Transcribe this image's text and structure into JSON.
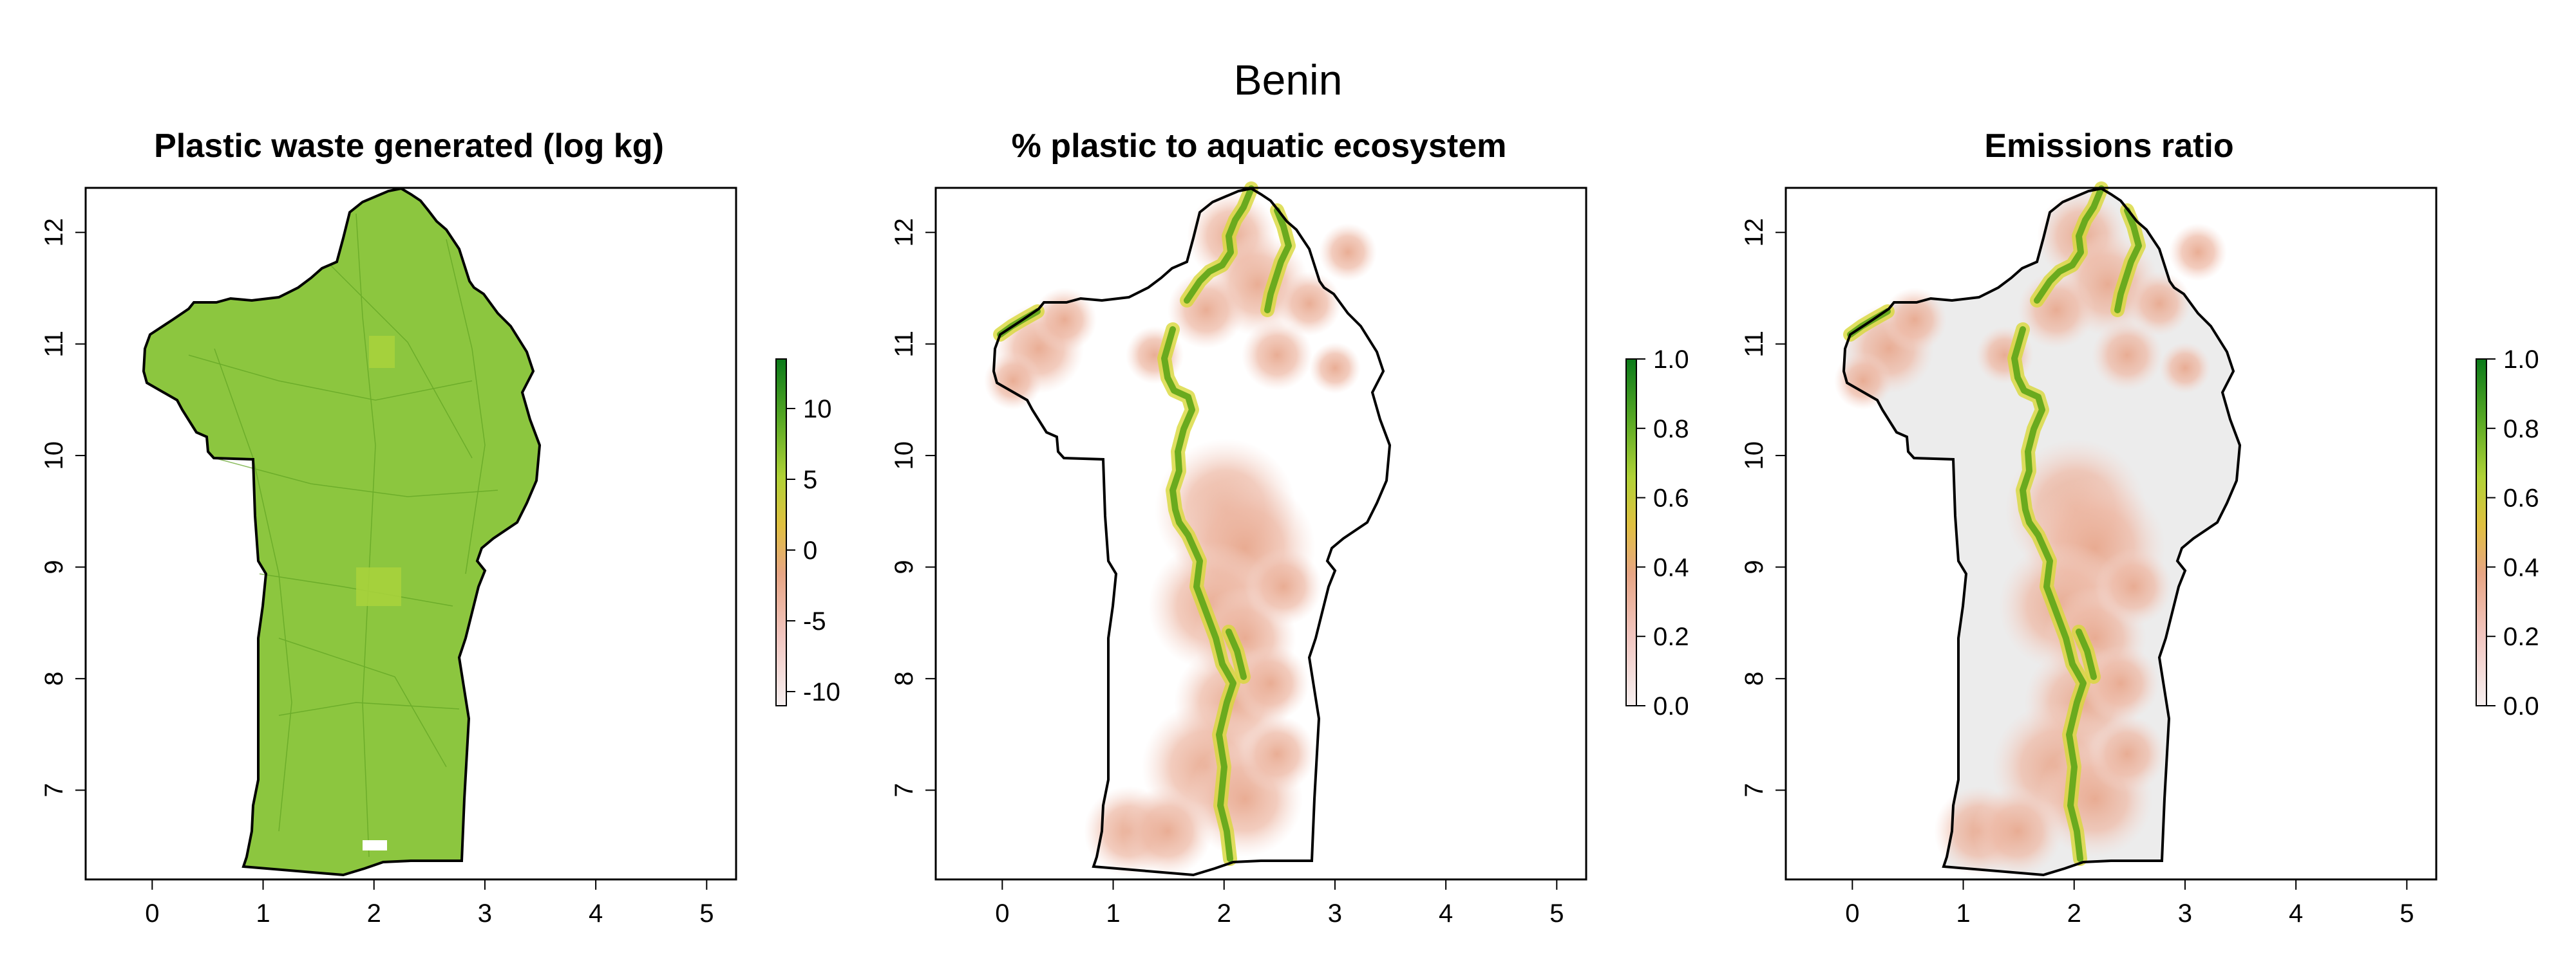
{
  "title": "Benin",
  "panels": [
    {
      "title": "Plastic waste generated (log kg)",
      "x_ticks": [
        "0",
        "1",
        "2",
        "3",
        "4",
        "5"
      ],
      "y_ticks": [
        "7",
        "8",
        "9",
        "10",
        "11",
        "12"
      ],
      "legend_ticks": [
        "10",
        "5",
        "0",
        "-5",
        "-10"
      ],
      "legend_range": [
        -11,
        13.5
      ]
    },
    {
      "title": "% plastic to aquatic ecosystem",
      "x_ticks": [
        "0",
        "1",
        "2",
        "3",
        "4",
        "5"
      ],
      "y_ticks": [
        "7",
        "8",
        "9",
        "10",
        "11",
        "12"
      ],
      "legend_ticks": [
        "1.0",
        "0.8",
        "0.6",
        "0.4",
        "0.2",
        "0.0"
      ],
      "legend_range": [
        0,
        1
      ]
    },
    {
      "title": "Emissions ratio",
      "x_ticks": [
        "0",
        "1",
        "2",
        "3",
        "4",
        "5"
      ],
      "y_ticks": [
        "7",
        "8",
        "9",
        "10",
        "11",
        "12"
      ],
      "legend_ticks": [
        "1.0",
        "0.8",
        "0.6",
        "0.4",
        "0.2",
        "0.0"
      ],
      "legend_range": [
        0,
        1
      ]
    }
  ],
  "axis_ranges": {
    "longitude": [
      -0.6,
      5.25
    ],
    "latitude": [
      6.2,
      12.4
    ]
  },
  "colors": {
    "panel_1_fill": "#8cc63f",
    "river": "#6aaa1e",
    "river_glow": "#d8d83a",
    "catchment": "#e8a98f",
    "panel_3_background": "#ececec",
    "boundary": "#000000"
  },
  "color_ramp": [
    "#f6f0f0",
    "#f2c6c0",
    "#e7a584",
    "#e0c040",
    "#b0d236",
    "#5aaa24",
    "#0a7a1a"
  ]
}
